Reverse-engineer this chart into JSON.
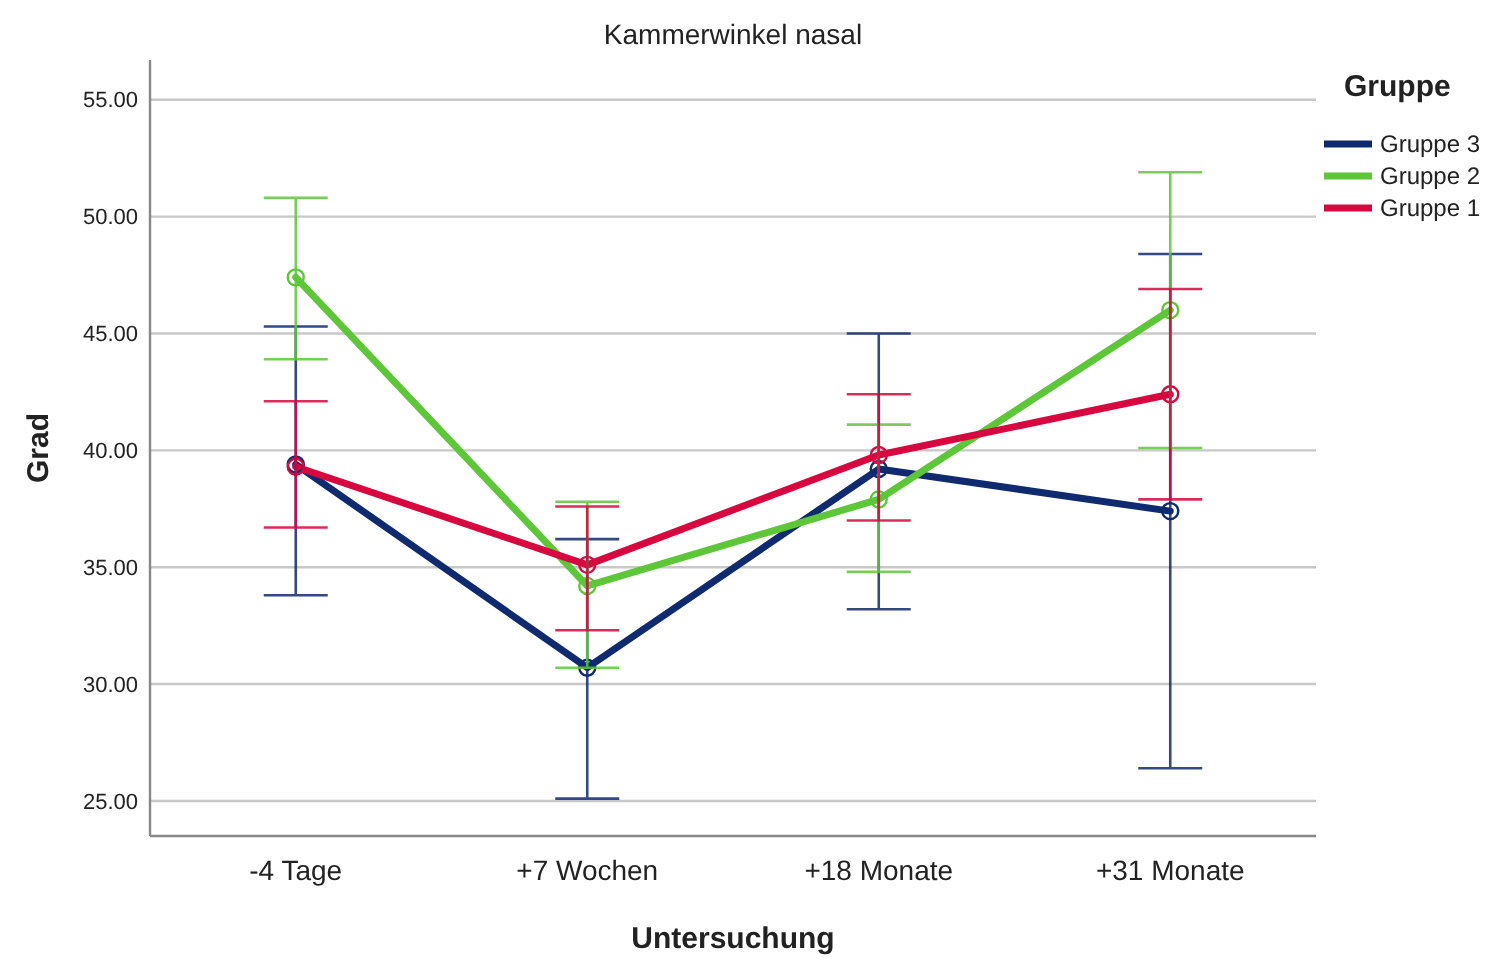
{
  "chart_data": {
    "type": "line",
    "title": "Kammerwinkel nasal",
    "xlabel": "Untersuchung",
    "ylabel": "Grad",
    "legend_title": "Gruppe",
    "categories": [
      "-4 Tage",
      "+7 Wochen",
      "+18 Monate",
      "+31 Monate"
    ],
    "series": [
      {
        "name": "Gruppe 3",
        "color": "#0f2a6e",
        "values": [
          39.4,
          30.7,
          39.2,
          37.4
        ],
        "errors": [
          [
            33.8,
            45.3
          ],
          [
            25.1,
            36.2
          ],
          [
            33.2,
            45.0
          ],
          [
            26.4,
            48.4
          ]
        ]
      },
      {
        "name": "Gruppe 2",
        "color": "#5ec639",
        "values": [
          47.4,
          34.2,
          37.9,
          46.0
        ],
        "errors": [
          [
            43.9,
            50.8
          ],
          [
            30.7,
            37.8
          ],
          [
            34.8,
            41.1
          ],
          [
            40.1,
            51.9
          ]
        ]
      },
      {
        "name": "Gruppe 1",
        "color": "#d7073f",
        "values": [
          39.3,
          35.1,
          39.8,
          42.4
        ],
        "errors": [
          [
            36.7,
            42.1
          ],
          [
            32.3,
            37.6
          ],
          [
            37.0,
            42.4
          ],
          [
            37.9,
            46.9
          ]
        ]
      }
    ],
    "ylim": [
      23.5,
      56.7
    ],
    "yticks": [
      {
        "value": 25,
        "label": "25.00"
      },
      {
        "value": 30,
        "label": "30.00"
      },
      {
        "value": 35,
        "label": "35.00"
      },
      {
        "value": 40,
        "label": "40.00"
      },
      {
        "value": 45,
        "label": "45.00"
      },
      {
        "value": 50,
        "label": "50.00"
      },
      {
        "value": 55,
        "label": "55.00"
      }
    ],
    "grid": "y",
    "legend": "top right",
    "marker": "circle",
    "line_style": "solid"
  }
}
